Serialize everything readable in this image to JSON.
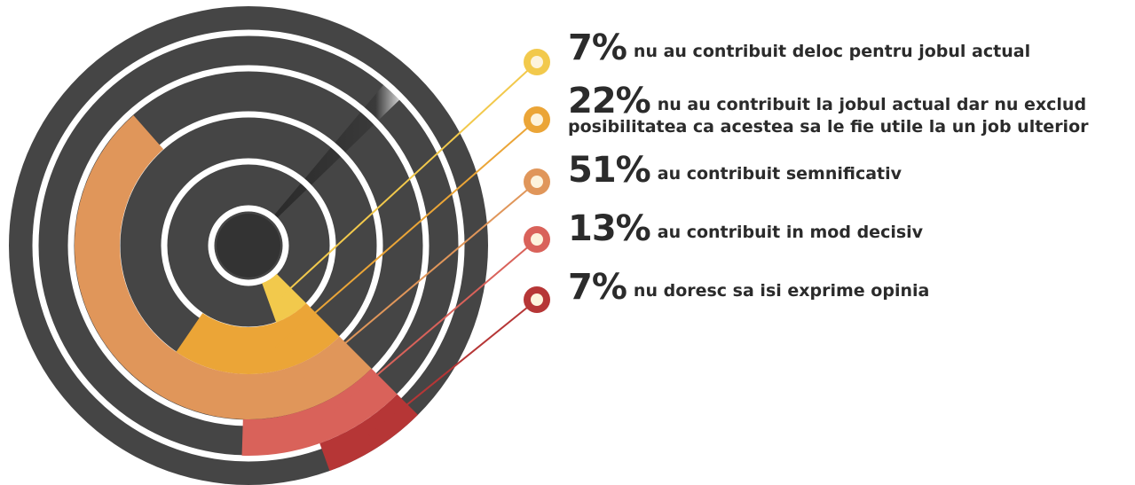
{
  "chart_data": {
    "type": "radial",
    "categories": [
      "nu au contribuit deloc pentru jobul actual",
      "nu au contribuit la jobul actual dar nu exclud posibilitatea ca acestea sa le fie utile la un job ulterior",
      "au contribuit semnificativ",
      "au contribuit in mod decisiv",
      "nu doresc sa isi exprime opinia"
    ],
    "values": [
      7,
      22,
      51,
      13,
      7
    ],
    "value_labels": [
      "7%",
      "22%",
      "51%",
      "13%",
      "7%"
    ],
    "colors": [
      "#f2c94c",
      "#eba537",
      "#e0965a",
      "#d9625a",
      "#b63636"
    ]
  }
}
